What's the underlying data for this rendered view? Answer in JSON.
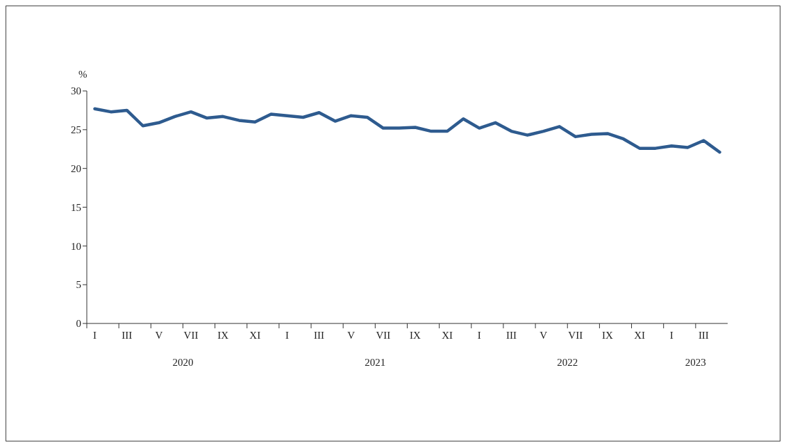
{
  "chart_data": {
    "type": "line",
    "ylabel": "%",
    "categories": [
      "I",
      null,
      "III",
      null,
      "V",
      null,
      "VII",
      null,
      "IX",
      null,
      "XI",
      null,
      "I",
      null,
      "III",
      null,
      "V",
      null,
      "VII",
      null,
      "IX",
      null,
      "XI",
      null,
      "I",
      null,
      "III",
      null,
      "V",
      null,
      "VII",
      null,
      "IX",
      null,
      "XI",
      null,
      "I",
      null,
      "III",
      null
    ],
    "series": [
      {
        "color": "#2e5b8f",
        "values": [
          27.7,
          27.3,
          27.5,
          25.5,
          25.9,
          26.7,
          27.3,
          26.5,
          26.7,
          26.2,
          26.0,
          27.0,
          26.8,
          26.6,
          27.2,
          26.1,
          26.8,
          26.6,
          25.2,
          25.2,
          25.3,
          24.8,
          24.8,
          26.4,
          25.2,
          25.9,
          24.8,
          24.3,
          24.8,
          25.4,
          24.1,
          24.4,
          24.5,
          23.8,
          22.6,
          22.6,
          22.9,
          22.7,
          23.6,
          22.1
        ]
      }
    ],
    "ylim": [
      0,
      30
    ],
    "yticks": [
      0,
      5,
      10,
      15,
      20,
      25,
      30
    ],
    "grid": false,
    "legend": false,
    "marker": "none",
    "line_style": "solid",
    "annotations": [
      "2020",
      "2021",
      "2022",
      "2023"
    ]
  }
}
